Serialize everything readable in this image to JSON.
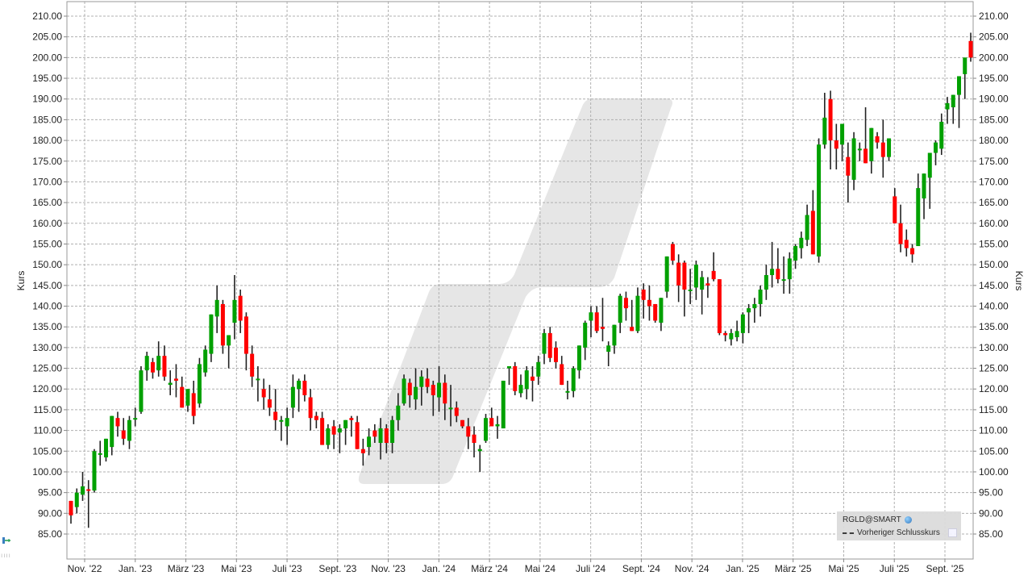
{
  "chart_data": {
    "type": "candlestick",
    "title": "",
    "symbol": "RGLD@SMART",
    "ylabel": "Kurs",
    "xlabel": "",
    "ylim": [
      80.5,
      213.5
    ],
    "y_ticks": [
      "210.00",
      "205.00",
      "200.00",
      "195.00",
      "190.00",
      "185.00",
      "180.00",
      "175.00",
      "170.00",
      "165.00",
      "160.00",
      "155.00",
      "150.00",
      "145.00",
      "140.00",
      "135.00",
      "130.00",
      "125.00",
      "120.00",
      "115.00",
      "110.00",
      "105.00",
      "100.00",
      "95.00",
      "90.00",
      "85.00"
    ],
    "x_ticks": [
      "Nov. '22",
      "Jan. '23",
      "März '23",
      "Mai '23",
      "Juli '23",
      "Sept. '23",
      "Nov. '23",
      "Jan. '24",
      "März '24",
      "Mai '24",
      "Juli '24",
      "Sept. '24",
      "Nov. '24",
      "Jan. '25",
      "März '25",
      "Mai '25",
      "Juli '25",
      "Sept. '25"
    ],
    "grid": true,
    "legend": {
      "position": "bottom-right",
      "entries": [
        "RGLD@SMART",
        "Vorheriger Schlusskurs"
      ]
    },
    "colors": {
      "up": "#00a000",
      "down": "#ff0000",
      "wick": "#222222",
      "grid": "#b0b0b0",
      "watermark": "#e6e6e6"
    },
    "candles_ohlc": [
      [
        93,
        93,
        87.5,
        89.5
      ],
      [
        91.5,
        96,
        90,
        95
      ],
      [
        94.5,
        100,
        93,
        96.5
      ],
      [
        95.8,
        98,
        86.5,
        95.5
      ],
      [
        95.5,
        105.5,
        95,
        105
      ],
      [
        104.5,
        107.5,
        101.5,
        104.5
      ],
      [
        103.5,
        108,
        102.5,
        108
      ],
      [
        106,
        113.5,
        104,
        113.5
      ],
      [
        113,
        114.5,
        108.5,
        111
      ],
      [
        110,
        113,
        106.5,
        108
      ],
      [
        107.5,
        113.5,
        105.5,
        112.5
      ],
      [
        113,
        115.5,
        111,
        113
      ],
      [
        114.5,
        125.5,
        114,
        124.5
      ],
      [
        124.5,
        129,
        122,
        128
      ],
      [
        126.5,
        127.5,
        122.5,
        124
      ],
      [
        124.5,
        131.5,
        123,
        128
      ],
      [
        128,
        130.5,
        122,
        123
      ],
      [
        121,
        124.5,
        118.5,
        121.5
      ],
      [
        122.5,
        126,
        118,
        122
      ],
      [
        120.5,
        123,
        115.5,
        115.5
      ],
      [
        116,
        120,
        114.5,
        120
      ],
      [
        119,
        122,
        111.5,
        113.5
      ],
      [
        116.5,
        127.5,
        115.5,
        126
      ],
      [
        124,
        130.5,
        123,
        129.5
      ],
      [
        128.5,
        135,
        126.5,
        138
      ],
      [
        137.5,
        145,
        133.5,
        141.5
      ],
      [
        140.5,
        141.5,
        128.5,
        130.5
      ],
      [
        130.5,
        132.5,
        125,
        133
      ],
      [
        136,
        147.5,
        132,
        141.5
      ],
      [
        142.5,
        144,
        133.5,
        136.5
      ],
      [
        137.5,
        138.5,
        124.5,
        128.5
      ],
      [
        128.5,
        130.5,
        120.5,
        123
      ],
      [
        122.5,
        125.5,
        117,
        122.5
      ],
      [
        120,
        122.5,
        115,
        118
      ],
      [
        117.5,
        121,
        113.5,
        115.5
      ],
      [
        114.5,
        120,
        110,
        112.5
      ],
      [
        112.5,
        113.5,
        107.5,
        112.5
      ],
      [
        111,
        115.5,
        106.5,
        113
      ],
      [
        115.5,
        123.5,
        113,
        120.5
      ],
      [
        120,
        122.5,
        114.5,
        122
      ],
      [
        122,
        123.5,
        117,
        118.5
      ],
      [
        118,
        120,
        110,
        113
      ],
      [
        113.5,
        114.5,
        110.5,
        112.5
      ],
      [
        113,
        114.5,
        107,
        106.5
      ],
      [
        106.5,
        111.5,
        105.5,
        110.5
      ],
      [
        111,
        112.5,
        105.5,
        109
      ],
      [
        109.5,
        111.5,
        104.5,
        110.5
      ],
      [
        110.5,
        112,
        106.5,
        112.5
      ],
      [
        113,
        113.5,
        108.5,
        112.5
      ],
      [
        112,
        113.5,
        106.5,
        105.5
      ],
      [
        105.5,
        108,
        101.5,
        104.5
      ],
      [
        106,
        110.5,
        104,
        108.5
      ],
      [
        110,
        111.5,
        107,
        108.5
      ],
      [
        107,
        113,
        103,
        110.5
      ],
      [
        110.5,
        111.5,
        104.5,
        107
      ],
      [
        107,
        113.5,
        104.5,
        112.5
      ],
      [
        112.5,
        119,
        110,
        116
      ],
      [
        116.5,
        123.5,
        116,
        122.5
      ],
      [
        121.5,
        122.5,
        115.5,
        118.5
      ],
      [
        117.5,
        125,
        115,
        120.5
      ],
      [
        120.5,
        124.5,
        116,
        123
      ],
      [
        122.5,
        125,
        119,
        120.5
      ],
      [
        121,
        122,
        113.5,
        118.5
      ],
      [
        118,
        125.5,
        114.5,
        121.5
      ],
      [
        121.5,
        123.5,
        112.5,
        116.5
      ],
      [
        115.5,
        121,
        111,
        115.5
      ],
      [
        115.5,
        117,
        112,
        113.5
      ],
      [
        112.5,
        112.5,
        110.5,
        111
      ],
      [
        111,
        113,
        105.5,
        108.5
      ],
      [
        109,
        111,
        103.5,
        107
      ],
      [
        105,
        106.5,
        100,
        105.5
      ],
      [
        107.5,
        114,
        107,
        113
      ],
      [
        113,
        115.5,
        111,
        111
      ],
      [
        111,
        113.5,
        108,
        111.5
      ],
      [
        110.5,
        121,
        110.5,
        122
      ],
      [
        125,
        125.5,
        121,
        125.5
      ],
      [
        125.5,
        126.5,
        118.5,
        119.5
      ],
      [
        119,
        123.5,
        118,
        121
      ],
      [
        120,
        125.5,
        117.5,
        124.5
      ],
      [
        123,
        125.5,
        117,
        122
      ],
      [
        123,
        128,
        121,
        126.5
      ],
      [
        128.5,
        134.5,
        126,
        133.5
      ],
      [
        133.5,
        135,
        126.5,
        127.5
      ],
      [
        130,
        131.5,
        125,
        126.5
      ],
      [
        126,
        128,
        121.5,
        121
      ],
      [
        119.5,
        122,
        117.5,
        119.5
      ],
      [
        119.5,
        125.5,
        118,
        125
      ],
      [
        124.5,
        130,
        122.5,
        130.5
      ],
      [
        130,
        136.5,
        127,
        136
      ],
      [
        136.5,
        140,
        132.5,
        138.5
      ],
      [
        138.5,
        140,
        133.5,
        134
      ],
      [
        135,
        142,
        131.5,
        134.5
      ],
      [
        129,
        131.5,
        125.5,
        130.5
      ],
      [
        130.5,
        135.5,
        128.5,
        135.5
      ],
      [
        136,
        143,
        133.5,
        142.5
      ],
      [
        142,
        143.5,
        136.5,
        139.5
      ],
      [
        135,
        141.5,
        134,
        134
      ],
      [
        134,
        144.5,
        133.5,
        142.5
      ],
      [
        144,
        145.5,
        137,
        141.5
      ],
      [
        141.5,
        145,
        136.5,
        140
      ],
      [
        140.5,
        140,
        136,
        136.5
      ],
      [
        136,
        142,
        134,
        142
      ],
      [
        143.5,
        152,
        142,
        152
      ],
      [
        155,
        155.5,
        150,
        151
      ],
      [
        150.5,
        152.5,
        141,
        145
      ],
      [
        150.5,
        151,
        137.5,
        144
      ],
      [
        144,
        149,
        140.5,
        144
      ],
      [
        144.5,
        151,
        141.5,
        150
      ],
      [
        144,
        148.5,
        138,
        147
      ],
      [
        145.5,
        147,
        142,
        145
      ],
      [
        148.5,
        153,
        146,
        146.5
      ],
      [
        146.5,
        146,
        133,
        133.5
      ],
      [
        133.5,
        134,
        131.5,
        133
      ],
      [
        132,
        134.5,
        130.5,
        133.5
      ],
      [
        132.5,
        136.5,
        131.5,
        134
      ],
      [
        133.5,
        138.5,
        131,
        138
      ],
      [
        138.5,
        140.5,
        133.5,
        139.5
      ],
      [
        139.5,
        142,
        136,
        140.5
      ],
      [
        140.5,
        145,
        137.5,
        144
      ],
      [
        144,
        150,
        141.5,
        147.5
      ],
      [
        147.5,
        155.5,
        144.5,
        149
      ],
      [
        149,
        154,
        145.5,
        146.5
      ],
      [
        146.5,
        152,
        143,
        146.5
      ],
      [
        146.5,
        153,
        143,
        151.5
      ],
      [
        151,
        155,
        149,
        154.5
      ],
      [
        154,
        158,
        151.5,
        156.5
      ],
      [
        156,
        164.5,
        154.5,
        162
      ],
      [
        163,
        168,
        156,
        152.5
      ],
      [
        152,
        180.5,
        150.5,
        179
      ],
      [
        179,
        191.5,
        178,
        185.5
      ],
      [
        190,
        192,
        173,
        180
      ],
      [
        180,
        184,
        173,
        178
      ],
      [
        179,
        183.5,
        175,
        184
      ],
      [
        176,
        179.5,
        165,
        171.5
      ],
      [
        170.5,
        182,
        168,
        180.5
      ],
      [
        178,
        179.5,
        175,
        178
      ],
      [
        178,
        188,
        176,
        174.5
      ],
      [
        175,
        183,
        172,
        183
      ],
      [
        181,
        182,
        178,
        179.5
      ],
      [
        179.5,
        185,
        171,
        176
      ],
      [
        176,
        180.5,
        175,
        180.5
      ],
      [
        166.5,
        168.5,
        161.5,
        160
      ],
      [
        160,
        164.5,
        153,
        155
      ],
      [
        156,
        158.5,
        152,
        154
      ],
      [
        154,
        155,
        150.5,
        152.5
      ],
      [
        154.5,
        172,
        154.5,
        168.5
      ],
      [
        166,
        172,
        161,
        172
      ],
      [
        171,
        175,
        163.5,
        177
      ],
      [
        177,
        180,
        174,
        179.5
      ],
      [
        178,
        186.5,
        176.5,
        184.5
      ],
      [
        187.5,
        190.5,
        184,
        189
      ],
      [
        188,
        191,
        184,
        191
      ],
      [
        191,
        195,
        183,
        195.5
      ],
      [
        196,
        198.5,
        190,
        200
      ],
      [
        204,
        206,
        199,
        200
      ]
    ]
  },
  "axes": {
    "left_label": "Kurs",
    "right_label": "Kurs"
  },
  "legend": {
    "symbol": "RGLD@SMART",
    "series_label": "Vorheriger Schlusskurs"
  }
}
